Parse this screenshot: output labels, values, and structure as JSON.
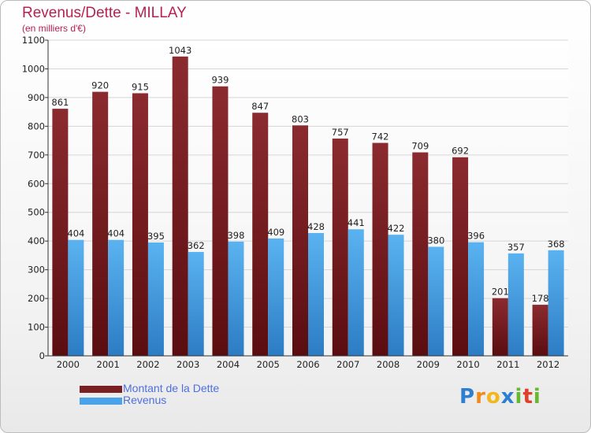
{
  "header": {
    "title": "Revenus/Dette - MILLAY",
    "subtitle": "(en milliers d'€)"
  },
  "chart_data": {
    "type": "bar",
    "categories": [
      "2000",
      "2001",
      "2002",
      "2003",
      "2004",
      "2005",
      "2006",
      "2007",
      "2008",
      "2009",
      "2010",
      "2011",
      "2012"
    ],
    "series": [
      {
        "name": "Montant de la Dette",
        "color": "#7a1f22",
        "values": [
          861,
          920,
          915,
          1043,
          939,
          847,
          803,
          757,
          742,
          709,
          692,
          201,
          178
        ]
      },
      {
        "name": "Revenus",
        "color": "#4aa3e8",
        "values": [
          404,
          404,
          395,
          362,
          398,
          409,
          428,
          441,
          422,
          380,
          396,
          357,
          368
        ]
      }
    ],
    "ylim": [
      0,
      1100
    ],
    "yticks": [
      0,
      100,
      200,
      300,
      400,
      500,
      600,
      700,
      800,
      900,
      1000,
      1100
    ],
    "grid": true,
    "legend_position": "bottom-left"
  },
  "logo": {
    "text": "Proxiti",
    "letters": [
      {
        "ch": "P",
        "color": "#2f7fd0"
      },
      {
        "ch": "r",
        "color": "#f08a1c"
      },
      {
        "ch": "o",
        "color": "#f3b71a"
      },
      {
        "ch": "x",
        "color": "#2f7fd0"
      },
      {
        "ch": "i",
        "color": "#66b82e"
      },
      {
        "ch": "t",
        "color": "#e0402a"
      },
      {
        "ch": "i",
        "color": "#66b82e"
      }
    ]
  }
}
